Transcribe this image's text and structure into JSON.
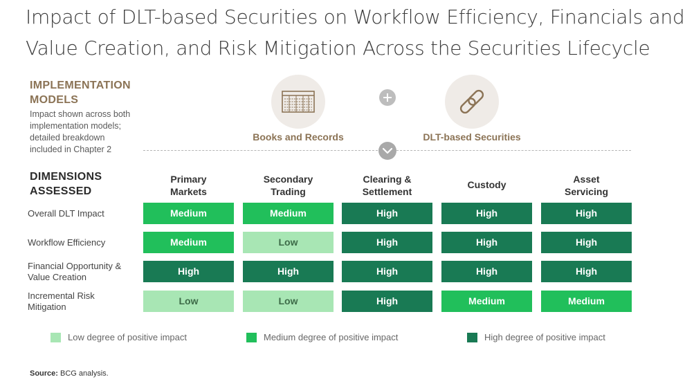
{
  "title": {
    "line1": "Impact of DLT-based Securities on Workflow Efficiency, Financials and",
    "line2": "Value Creation, and Risk Mitigation Across the Securities Lifecycle"
  },
  "implementation": {
    "heading_line1": "IMPLEMENTATION",
    "heading_line2": "MODELS",
    "desc_line1": "Impact shown across both",
    "desc_line2": "implementation models;",
    "desc_line3": "detailed breakdown",
    "desc_line4": "included in Chapter 2",
    "models": [
      {
        "label": "Books and Records",
        "icon": "ledger-table-icon"
      },
      {
        "label": "DLT-based Securities",
        "icon": "chain-link-icon"
      }
    ]
  },
  "dimensions": {
    "heading_line1": "DIMENSIONS",
    "heading_line2": "ASSESSED"
  },
  "colors": {
    "low": "#a8e6b4",
    "medium": "#21bf5b",
    "high": "#197a54",
    "brown": "#8b7355"
  },
  "chart_data": {
    "type": "heatmap",
    "columns": [
      {
        "line1": "Primary",
        "line2": "Markets"
      },
      {
        "line1": "Secondary",
        "line2": "Trading"
      },
      {
        "line1": "Clearing &",
        "line2": "Settlement"
      },
      {
        "line1": "Custody",
        "line2": ""
      },
      {
        "line1": "Asset",
        "line2": "Servicing"
      }
    ],
    "rows": [
      {
        "line1": "Overall DLT Impact",
        "line2": "",
        "values": [
          "Medium",
          "Medium",
          "High",
          "High",
          "High"
        ]
      },
      {
        "line1": "Workflow Efficiency",
        "line2": "",
        "values": [
          "Medium",
          "Low",
          "High",
          "High",
          "High"
        ]
      },
      {
        "line1": "Financial Opportunity &",
        "line2": "Value Creation",
        "values": [
          "High",
          "High",
          "High",
          "High",
          "High"
        ]
      },
      {
        "line1": "Incremental Risk",
        "line2": "Mitigation",
        "values": [
          "Low",
          "Low",
          "High",
          "Medium",
          "Medium"
        ]
      }
    ],
    "legend": [
      {
        "level": "Low",
        "label": "Low degree of positive impact"
      },
      {
        "level": "Medium",
        "label": "Medium degree of positive impact"
      },
      {
        "level": "High",
        "label": "High degree of positive impact"
      }
    ]
  },
  "source": {
    "label": "Source:",
    "text": "BCG analysis."
  }
}
